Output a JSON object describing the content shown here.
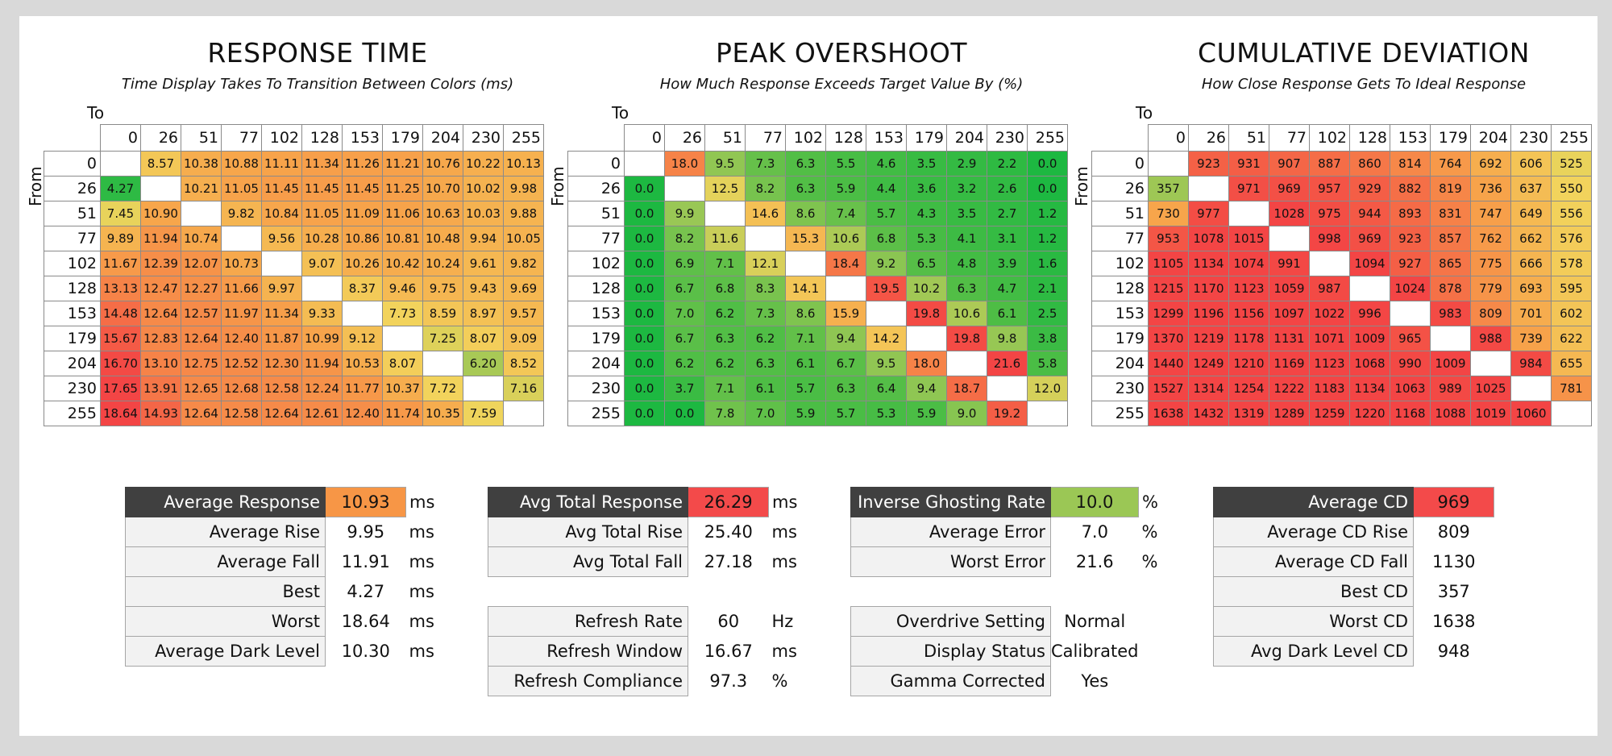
{
  "colors": {
    "low": "#1db841",
    "mid": "#f2d45c",
    "midhigh": "#f7a24a",
    "high": "#f34545",
    "header_dark": "#404040"
  },
  "panels": [
    {
      "title": "RESPONSE TIME",
      "subtitle": "Time Display Takes To Transition Between Colors (ms)",
      "to_label": "To",
      "from_label": "From"
    },
    {
      "title": "PEAK OVERSHOOT",
      "subtitle": "How Much Response Exceeds Target Value By (%)",
      "to_label": "To",
      "from_label": "From"
    },
    {
      "title": "CUMULATIVE DEVIATION",
      "subtitle": "How Close Response Gets To Ideal Response",
      "to_label": "To",
      "from_label": "From"
    }
  ],
  "chart_data": [
    {
      "type": "heatmap",
      "title": "RESPONSE TIME",
      "subtitle": "Time Display Takes To Transition Between Colors (ms)",
      "xlabel": "To",
      "ylabel": "From",
      "x": [
        "0",
        "26",
        "51",
        "77",
        "102",
        "128",
        "153",
        "179",
        "204",
        "230",
        "255"
      ],
      "y": [
        "0",
        "26",
        "51",
        "77",
        "102",
        "128",
        "153",
        "179",
        "204",
        "230",
        "255"
      ],
      "values": [
        [
          null,
          "8.57",
          "10.38",
          "10.88",
          "11.11",
          "11.34",
          "11.26",
          "11.21",
          "10.76",
          "10.22",
          "10.13"
        ],
        [
          "4.27",
          null,
          "10.21",
          "11.05",
          "11.45",
          "11.45",
          "11.45",
          "11.25",
          "10.70",
          "10.02",
          "9.98"
        ],
        [
          "7.45",
          "10.90",
          null,
          "9.82",
          "10.84",
          "11.05",
          "11.09",
          "11.06",
          "10.63",
          "10.03",
          "9.88"
        ],
        [
          "9.89",
          "11.94",
          "10.74",
          null,
          "9.56",
          "10.28",
          "10.86",
          "10.81",
          "10.48",
          "9.94",
          "10.05"
        ],
        [
          "11.67",
          "12.39",
          "12.07",
          "10.73",
          null,
          "9.07",
          "10.26",
          "10.42",
          "10.24",
          "9.61",
          "9.82"
        ],
        [
          "13.13",
          "12.47",
          "12.27",
          "11.66",
          "9.97",
          null,
          "8.37",
          "9.46",
          "9.75",
          "9.43",
          "9.69"
        ],
        [
          "14.48",
          "12.64",
          "12.57",
          "11.97",
          "11.34",
          "9.33",
          null,
          "7.73",
          "8.59",
          "8.97",
          "9.57"
        ],
        [
          "15.67",
          "12.83",
          "12.64",
          "12.40",
          "11.87",
          "10.99",
          "9.12",
          null,
          "7.25",
          "8.07",
          "9.09"
        ],
        [
          "16.70",
          "13.10",
          "12.75",
          "12.52",
          "12.30",
          "11.94",
          "10.53",
          "8.07",
          null,
          "6.20",
          "8.52"
        ],
        [
          "17.65",
          "13.91",
          "12.65",
          "12.68",
          "12.58",
          "12.24",
          "11.77",
          "10.37",
          "7.72",
          null,
          "7.16"
        ],
        [
          "18.64",
          "14.93",
          "12.64",
          "12.58",
          "12.64",
          "12.61",
          "12.40",
          "11.74",
          "10.35",
          "7.59",
          null
        ]
      ]
    },
    {
      "type": "heatmap",
      "title": "PEAK OVERSHOOT",
      "subtitle": "How Much Response Exceeds Target Value By (%)",
      "xlabel": "To",
      "ylabel": "From",
      "x": [
        "0",
        "26",
        "51",
        "77",
        "102",
        "128",
        "153",
        "179",
        "204",
        "230",
        "255"
      ],
      "y": [
        "0",
        "26",
        "51",
        "77",
        "102",
        "128",
        "153",
        "179",
        "204",
        "230",
        "255"
      ],
      "values": [
        [
          null,
          "18.0",
          "9.5",
          "7.3",
          "6.3",
          "5.5",
          "4.6",
          "3.5",
          "2.9",
          "2.2",
          "0.0"
        ],
        [
          "0.0",
          null,
          "12.5",
          "8.2",
          "6.3",
          "5.9",
          "4.4",
          "3.6",
          "3.2",
          "2.6",
          "0.0"
        ],
        [
          "0.0",
          "9.9",
          null,
          "14.6",
          "8.6",
          "7.4",
          "5.7",
          "4.3",
          "3.5",
          "2.7",
          "1.2"
        ],
        [
          "0.0",
          "8.2",
          "11.6",
          null,
          "15.3",
          "10.6",
          "6.8",
          "5.3",
          "4.1",
          "3.1",
          "1.2"
        ],
        [
          "0.0",
          "6.9",
          "7.1",
          "12.1",
          null,
          "18.4",
          "9.2",
          "6.5",
          "4.8",
          "3.9",
          "1.6"
        ],
        [
          "0.0",
          "6.7",
          "6.8",
          "8.3",
          "14.1",
          null,
          "19.5",
          "10.2",
          "6.3",
          "4.7",
          "2.1"
        ],
        [
          "0.0",
          "7.0",
          "6.2",
          "7.3",
          "8.6",
          "15.9",
          null,
          "19.8",
          "10.6",
          "6.1",
          "2.5"
        ],
        [
          "0.0",
          "6.7",
          "6.3",
          "6.2",
          "7.1",
          "9.4",
          "14.2",
          null,
          "19.8",
          "9.8",
          "3.8"
        ],
        [
          "0.0",
          "6.2",
          "6.2",
          "6.3",
          "6.1",
          "6.7",
          "9.5",
          "18.0",
          null,
          "21.6",
          "5.8"
        ],
        [
          "0.0",
          "3.7",
          "7.1",
          "6.1",
          "5.7",
          "6.3",
          "6.4",
          "9.4",
          "18.7",
          null,
          "12.0"
        ],
        [
          "0.0",
          "0.0",
          "7.8",
          "7.0",
          "5.9",
          "5.7",
          "5.3",
          "5.9",
          "9.0",
          "19.2",
          null
        ]
      ]
    },
    {
      "type": "heatmap",
      "title": "CUMULATIVE DEVIATION",
      "subtitle": "How Close Response Gets To Ideal Response",
      "xlabel": "To",
      "ylabel": "From",
      "x": [
        "0",
        "26",
        "51",
        "77",
        "102",
        "128",
        "153",
        "179",
        "204",
        "230",
        "255"
      ],
      "y": [
        "0",
        "26",
        "51",
        "77",
        "102",
        "128",
        "153",
        "179",
        "204",
        "230",
        "255"
      ],
      "values": [
        [
          null,
          "923",
          "931",
          "907",
          "887",
          "860",
          "814",
          "764",
          "692",
          "606",
          "525"
        ],
        [
          "357",
          null,
          "971",
          "969",
          "957",
          "929",
          "882",
          "819",
          "736",
          "637",
          "550"
        ],
        [
          "730",
          "977",
          null,
          "1028",
          "975",
          "944",
          "893",
          "831",
          "747",
          "649",
          "556"
        ],
        [
          "953",
          "1078",
          "1015",
          null,
          "998",
          "969",
          "923",
          "857",
          "762",
          "662",
          "576"
        ],
        [
          "1105",
          "1134",
          "1074",
          "991",
          null,
          "1094",
          "927",
          "865",
          "775",
          "666",
          "578"
        ],
        [
          "1215",
          "1170",
          "1123",
          "1059",
          "987",
          null,
          "1024",
          "878",
          "779",
          "693",
          "595"
        ],
        [
          "1299",
          "1196",
          "1156",
          "1097",
          "1022",
          "996",
          null,
          "983",
          "809",
          "701",
          "602"
        ],
        [
          "1370",
          "1219",
          "1178",
          "1131",
          "1071",
          "1009",
          "965",
          null,
          "988",
          "739",
          "622"
        ],
        [
          "1440",
          "1249",
          "1210",
          "1169",
          "1123",
          "1068",
          "990",
          "1009",
          null,
          "984",
          "655"
        ],
        [
          "1527",
          "1314",
          "1254",
          "1222",
          "1183",
          "1134",
          "1063",
          "989",
          "1025",
          null,
          "781"
        ],
        [
          "1638",
          "1432",
          "1319",
          "1289",
          "1259",
          "1220",
          "1168",
          "1088",
          "1019",
          "1060",
          null
        ]
      ]
    }
  ],
  "stats": [
    {
      "rows": [
        {
          "label": "Average Response",
          "value": "10.93",
          "unit": "ms",
          "header": true,
          "color": "#f79646"
        },
        {
          "label": "Average Rise",
          "value": "9.95",
          "unit": "ms"
        },
        {
          "label": "Average Fall",
          "value": "11.91",
          "unit": "ms"
        },
        {
          "label": "Best",
          "value": "4.27",
          "unit": "ms"
        },
        {
          "label": "Worst",
          "value": "18.64",
          "unit": "ms"
        },
        {
          "label": "Average Dark Level",
          "value": "10.30",
          "unit": "ms"
        }
      ]
    },
    {
      "rows": [
        {
          "label": "Avg Total Response",
          "value": "26.29",
          "unit": "ms",
          "header": true,
          "color": "#f34a4a"
        },
        {
          "label": "Avg Total Rise",
          "value": "25.40",
          "unit": "ms"
        },
        {
          "label": "Avg Total Fall",
          "value": "27.18",
          "unit": "ms"
        },
        {
          "gap": true
        },
        {
          "label": "Refresh Rate",
          "value": "60",
          "unit": "Hz"
        },
        {
          "label": "Refresh Window",
          "value": "16.67",
          "unit": "ms"
        },
        {
          "label": "Refresh Compliance",
          "value": "97.3",
          "unit": "%"
        }
      ]
    },
    {
      "rows": [
        {
          "label": "Inverse Ghosting Rate",
          "value": "10.0",
          "unit": "%",
          "header": true,
          "color": "#9bc755"
        },
        {
          "label": "Average Error",
          "value": "7.0",
          "unit": "%"
        },
        {
          "label": "Worst Error",
          "value": "21.6",
          "unit": "%"
        },
        {
          "gap": true
        },
        {
          "label": "Overdrive Setting",
          "value": "Normal",
          "unit": ""
        },
        {
          "label": "Display Status",
          "value": "Calibrated",
          "unit": ""
        },
        {
          "label": "Gamma Corrected",
          "value": "Yes",
          "unit": ""
        }
      ]
    },
    {
      "rows": [
        {
          "label": "Average CD",
          "value": "969",
          "unit": "",
          "header": true,
          "color": "#f34a4a"
        },
        {
          "label": "Average CD Rise",
          "value": "809",
          "unit": ""
        },
        {
          "label": "Average CD Fall",
          "value": "1130",
          "unit": ""
        },
        {
          "label": "Best CD",
          "value": "357",
          "unit": ""
        },
        {
          "label": "Worst CD",
          "value": "1638",
          "unit": ""
        },
        {
          "label": "Avg Dark Level CD",
          "value": "948",
          "unit": ""
        }
      ]
    }
  ]
}
